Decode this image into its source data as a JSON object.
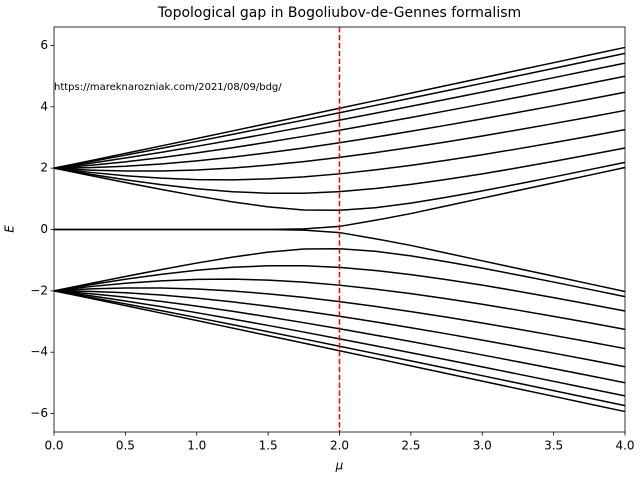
{
  "chart_data": {
    "type": "line",
    "title": "Topological gap in Bogoliubov-de-Gennes formalism",
    "x_label": "μ",
    "y_label": "E",
    "annotation": "https://mareknarozniak.com/2021/08/09/bdg/",
    "x": [
      0,
      0.25,
      0.5,
      0.75,
      1,
      1.25,
      1.5,
      1.75,
      2,
      2.25,
      2.5,
      2.75,
      3,
      3.25,
      3.5,
      3.75,
      4
    ],
    "xlim": [
      0,
      4
    ],
    "xticks": [
      {
        "value": 0,
        "label": "0.0"
      },
      {
        "value": 0.5,
        "label": "0.5"
      },
      {
        "value": 1,
        "label": "1.0"
      },
      {
        "value": 1.5,
        "label": "1.5"
      },
      {
        "value": 2,
        "label": "2.0"
      },
      {
        "value": 2.5,
        "label": "2.5"
      },
      {
        "value": 3,
        "label": "3.0"
      },
      {
        "value": 3.5,
        "label": "3.5"
      },
      {
        "value": 4,
        "label": "4.0"
      }
    ],
    "ylim": [
      -6.6,
      6.6
    ],
    "yticks": [
      {
        "value": -6,
        "label": "−6"
      },
      {
        "value": -4,
        "label": "−4"
      },
      {
        "value": -2,
        "label": "−2"
      },
      0,
      2,
      4,
      6
    ],
    "vline": {
      "x": 2,
      "color": "#ff0000"
    },
    "series": [
      {
        "color": "#000000",
        "values": [
          2,
          2.239,
          2.48,
          2.723,
          2.967,
          3.212,
          3.458,
          3.704,
          3.951,
          4.198,
          4.445,
          4.693,
          4.941,
          5.189,
          5.437,
          5.686,
          5.934
        ]
      },
      {
        "color": "#000000",
        "values": [
          2,
          2.207,
          2.422,
          2.644,
          2.87,
          3.1,
          3.332,
          3.567,
          3.804,
          4.043,
          4.283,
          4.523,
          4.765,
          5.008,
          5.251,
          5.495,
          5.74
        ]
      },
      {
        "color": "#000000",
        "values": [
          2,
          2.157,
          2.329,
          2.515,
          2.711,
          2.916,
          3.127,
          3.343,
          3.564,
          3.789,
          4.016,
          4.246,
          4.478,
          4.712,
          4.948,
          5.185,
          5.423
        ]
      },
      {
        "color": "#000000",
        "values": [
          2,
          2.091,
          2.206,
          2.343,
          2.497,
          2.666,
          2.847,
          3.037,
          3.236,
          3.441,
          3.652,
          3.868,
          4.088,
          4.31,
          4.536,
          4.764,
          4.994
        ]
      },
      {
        "color": "#000000",
        "values": [
          2,
          2.016,
          2.062,
          2.136,
          2.236,
          2.358,
          2.5,
          2.658,
          2.828,
          3.01,
          3.202,
          3.4,
          3.606,
          3.816,
          4.031,
          4.25,
          4.472
        ]
      },
      {
        "color": "#000000",
        "values": [
          2,
          1.937,
          1.906,
          1.907,
          1.94,
          2.004,
          2.097,
          2.213,
          2.351,
          2.506,
          2.676,
          2.857,
          3.048,
          3.247,
          3.453,
          3.664,
          3.88
        ]
      },
      {
        "color": "#000000",
        "values": [
          2,
          1.864,
          1.753,
          1.673,
          1.627,
          1.619,
          1.65,
          1.717,
          1.815,
          1.942,
          2.09,
          2.257,
          2.438,
          2.63,
          2.832,
          3.04,
          3.255
        ]
      },
      {
        "color": "#000000",
        "values": [
          2,
          1.804,
          1.622,
          1.461,
          1.328,
          1.232,
          1.182,
          1.183,
          1.236,
          1.335,
          1.47,
          1.632,
          1.814,
          2.011,
          2.219,
          2.435,
          2.656
        ]
      },
      {
        "color": "#000000",
        "values": [
          2,
          1.764,
          1.532,
          1.307,
          1.094,
          0.899,
          0.738,
          0.637,
          0.626,
          0.71,
          0.86,
          1.05,
          1.26,
          1.483,
          1.713,
          1.949,
          2.187
        ]
      },
      {
        "color": "#000000",
        "values": [
          0,
          0,
          0,
          0,
          0,
          0,
          0,
          0.02,
          0.1,
          0.3,
          0.52,
          0.77,
          1.02,
          1.27,
          1.52,
          1.77,
          2.02
        ]
      },
      {
        "color": "#000000",
        "values": [
          0,
          0,
          0,
          0,
          0,
          0,
          0,
          -0.02,
          -0.1,
          -0.3,
          -0.52,
          -0.77,
          -1.02,
          -1.27,
          -1.52,
          -1.77,
          -2.02
        ]
      },
      {
        "color": "#000000",
        "values": [
          -2,
          -1.764,
          -1.532,
          -1.307,
          -1.094,
          -0.899,
          -0.738,
          -0.637,
          -0.626,
          -0.71,
          -0.86,
          -1.05,
          -1.26,
          -1.483,
          -1.713,
          -1.949,
          -2.187
        ]
      },
      {
        "color": "#000000",
        "values": [
          -2,
          -1.804,
          -1.622,
          -1.461,
          -1.328,
          -1.232,
          -1.182,
          -1.183,
          -1.236,
          -1.335,
          -1.47,
          -1.632,
          -1.814,
          -2.011,
          -2.219,
          -2.435,
          -2.656
        ]
      },
      {
        "color": "#000000",
        "values": [
          -2,
          -1.864,
          -1.753,
          -1.673,
          -1.627,
          -1.619,
          -1.65,
          -1.717,
          -1.815,
          -1.942,
          -2.09,
          -2.257,
          -2.438,
          -2.63,
          -2.832,
          -3.04,
          -3.255
        ]
      },
      {
        "color": "#000000",
        "values": [
          -2,
          -1.937,
          -1.906,
          -1.907,
          -1.94,
          -2.004,
          -2.097,
          -2.213,
          -2.351,
          -2.506,
          -2.676,
          -2.857,
          -3.048,
          -3.247,
          -3.453,
          -3.664,
          -3.88
        ]
      },
      {
        "color": "#000000",
        "values": [
          -2,
          -2.016,
          -2.062,
          -2.136,
          -2.236,
          -2.358,
          -2.5,
          -2.658,
          -2.828,
          -3.01,
          -3.202,
          -3.4,
          -3.606,
          -3.816,
          -4.031,
          -4.25,
          -4.472
        ]
      },
      {
        "color": "#000000",
        "values": [
          -2,
          -2.091,
          -2.206,
          -2.343,
          -2.497,
          -2.666,
          -2.847,
          -3.037,
          -3.236,
          -3.441,
          -3.652,
          -3.868,
          -4.088,
          -4.31,
          -4.536,
          -4.764,
          -4.994
        ]
      },
      {
        "color": "#000000",
        "values": [
          -2,
          -2.157,
          -2.329,
          -2.515,
          -2.711,
          -2.916,
          -3.127,
          -3.343,
          -3.564,
          -3.789,
          -4.016,
          -4.246,
          -4.478,
          -4.712,
          -4.948,
          -5.185,
          -5.423
        ]
      },
      {
        "color": "#000000",
        "values": [
          -2,
          -2.207,
          -2.422,
          -2.644,
          -2.87,
          -3.1,
          -3.332,
          -3.567,
          -3.804,
          -4.043,
          -4.283,
          -4.523,
          -4.765,
          -5.008,
          -5.251,
          -5.495,
          -5.74
        ]
      },
      {
        "color": "#000000",
        "values": [
          -2,
          -2.239,
          -2.48,
          -2.723,
          -2.967,
          -3.212,
          -3.458,
          -3.704,
          -3.951,
          -4.198,
          -4.445,
          -4.693,
          -4.941,
          -5.189,
          -5.437,
          -5.686,
          -5.934
        ]
      }
    ]
  }
}
